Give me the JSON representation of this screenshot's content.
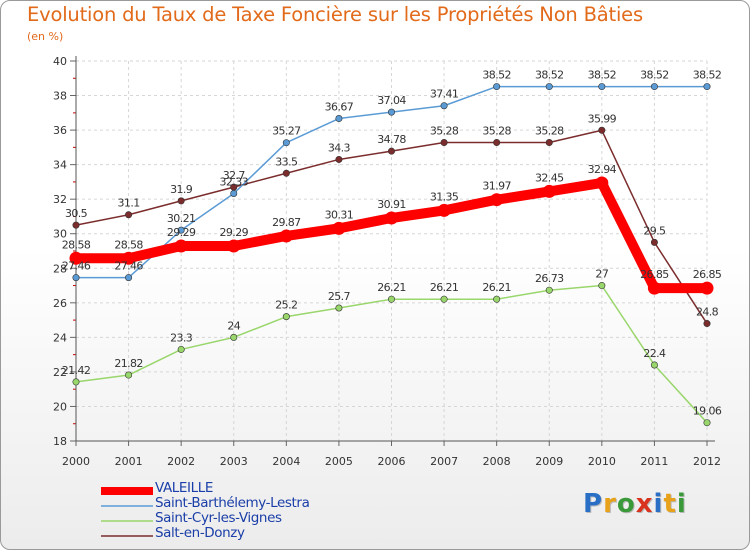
{
  "title": "Evolution du Taux de Taxe Foncière sur les Propriétés Non Bâties",
  "unit_label": "(en %)",
  "brand": {
    "text": "Proxiti",
    "letter_colors": [
      "#2a6fc6",
      "#e8a21a",
      "#3a9a3a",
      "#d9331f",
      "#2a6fc6",
      "#e8a21a",
      "#3a9a3a"
    ]
  },
  "chart_data": {
    "type": "line",
    "x": [
      "2000",
      "2001",
      "2002",
      "2003",
      "2004",
      "2005",
      "2006",
      "2007",
      "2008",
      "2009",
      "2010",
      "2011",
      "2012"
    ],
    "ylim": [
      18,
      40
    ],
    "yticks": [
      "18",
      "20",
      "22",
      "24",
      "26",
      "28",
      "30",
      "32",
      "34",
      "36",
      "38",
      "40"
    ],
    "grid": true,
    "legend_position": "bottom-left",
    "series": [
      {
        "name": "VALEILLE",
        "color": "#ff0000",
        "values": [
          28.58,
          28.58,
          29.29,
          29.29,
          29.87,
          30.31,
          30.91,
          31.35,
          31.97,
          32.45,
          32.94,
          26.85,
          26.85
        ],
        "labels": [
          "28.58",
          "28.58",
          "29.29",
          "29.29",
          "29.87",
          "30.31",
          "30.91",
          "31.35",
          "31.97",
          "32.45",
          "32.94",
          "26.85",
          "26.85"
        ]
      },
      {
        "name": "Saint-Barthélemy-Lestra",
        "color": "#5b9bd5",
        "values": [
          27.46,
          27.46,
          30.21,
          32.33,
          35.27,
          36.67,
          37.04,
          37.41,
          38.52,
          38.52,
          38.52,
          38.52,
          38.52
        ],
        "labels": [
          "27.46",
          "27.46",
          "30.21",
          "32.33",
          "35.27",
          "36.67",
          "37.04",
          "37.41",
          "38.52",
          "38.52",
          "38.52",
          "38.52",
          "38.52"
        ]
      },
      {
        "name": "Saint-Cyr-les-Vignes",
        "color": "#99d66b",
        "values": [
          21.42,
          21.82,
          23.3,
          24,
          25.2,
          25.7,
          26.21,
          26.21,
          26.21,
          26.73,
          27,
          22.4,
          19.06
        ],
        "labels": [
          "21.42",
          "21.82",
          "23.3",
          "24",
          "25.2",
          "25.7",
          "26.21",
          "26.21",
          "26.21",
          "26.73",
          "27",
          "22.4",
          "19.06"
        ]
      },
      {
        "name": "Salt-en-Donzy",
        "color": "#7b2c2c",
        "values": [
          30.5,
          31.1,
          31.9,
          32.7,
          33.5,
          34.3,
          34.78,
          35.28,
          35.28,
          35.28,
          35.99,
          29.5,
          24.8
        ],
        "labels": [
          "30.5",
          "31.1",
          "31.9",
          "32.7",
          "33.5",
          "34.3",
          "34.78",
          "35.28",
          "35.28",
          "35.28",
          "35.99",
          "29.5",
          "24.8"
        ]
      }
    ]
  }
}
